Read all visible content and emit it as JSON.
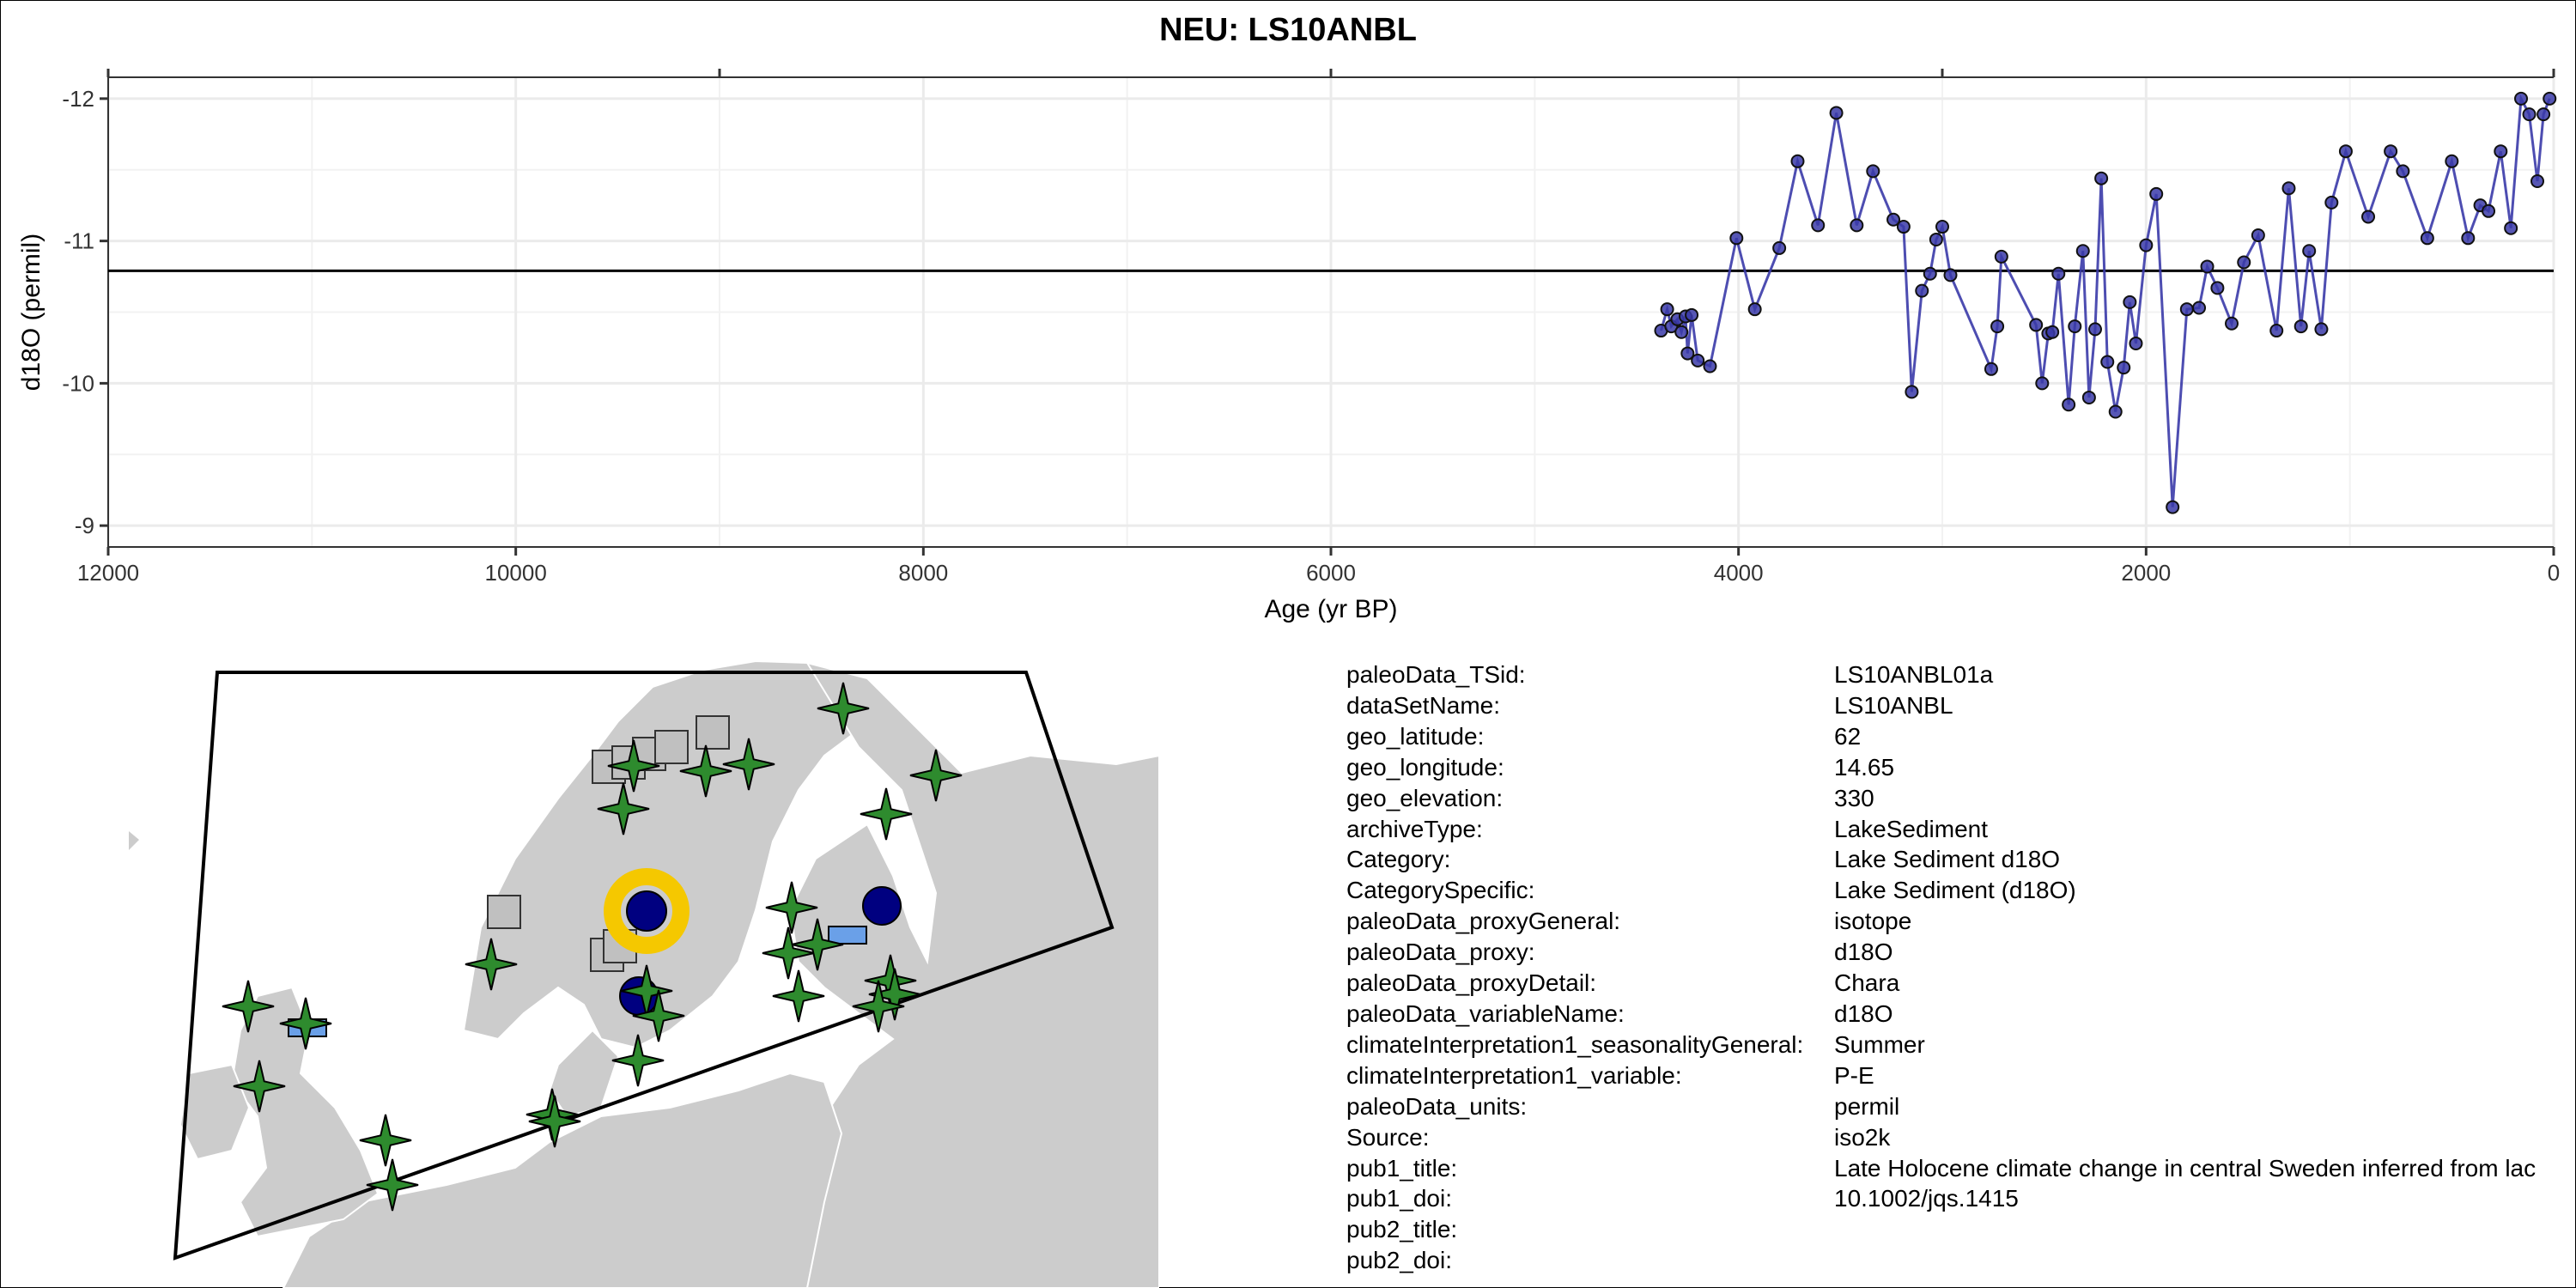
{
  "title": "NEU: LS10ANBL",
  "chart_data": {
    "type": "line",
    "title": "NEU: LS10ANBL",
    "xlabel": "Age (yr BP)",
    "ylabel": "d18O (permil)",
    "xlim": [
      12000,
      0
    ],
    "ylim": [
      -12.15,
      -8.85
    ],
    "x_reversed": true,
    "y_reversed": true,
    "xticks": [
      12000,
      10000,
      8000,
      6000,
      4000,
      2000,
      0
    ],
    "yticks": [
      -12,
      -11,
      -10,
      -9
    ],
    "grid": true,
    "reference_line": -10.79,
    "series": [
      {
        "color": "#3a3aa8",
        "x": [
          4380,
          4350,
          4330,
          4300,
          4280,
          4260,
          4250,
          4230,
          4200,
          4140,
          4010,
          3920,
          3800,
          3710,
          3610,
          3520,
          3420,
          3340,
          3240,
          3190,
          3150,
          3100,
          3060,
          3030,
          3000,
          2960,
          2760,
          2730,
          2710,
          2540,
          2510,
          2480,
          2460,
          2430,
          2380,
          2350,
          2310,
          2280,
          2250,
          2220,
          2190,
          2150,
          2110,
          2080,
          2050,
          2000,
          1950,
          1870,
          1800,
          1740,
          1700,
          1650,
          1580,
          1520,
          1450,
          1360,
          1300,
          1240,
          1200,
          1140,
          1090,
          1020,
          910,
          800,
          740,
          620,
          500,
          420,
          360,
          320,
          260,
          210,
          160,
          120,
          80,
          50,
          20
        ],
        "y": [
          -10.37,
          -10.52,
          -10.4,
          -10.45,
          -10.36,
          -10.47,
          -10.21,
          -10.48,
          -10.16,
          -10.12,
          -11.02,
          -10.52,
          -10.95,
          -11.56,
          -11.11,
          -11.9,
          -11.11,
          -11.49,
          -11.15,
          -11.1,
          -9.94,
          -10.65,
          -10.77,
          -11.01,
          -11.1,
          -10.76,
          -10.1,
          -10.4,
          -10.89,
          -10.41,
          -10.0,
          -10.35,
          -10.36,
          -10.77,
          -9.85,
          -10.4,
          -10.93,
          -9.9,
          -10.38,
          -11.44,
          -10.15,
          -9.8,
          -10.11,
          -10.57,
          -10.28,
          -10.97,
          -11.33,
          -9.13,
          -10.52,
          -10.53,
          -10.82,
          -10.67,
          -10.42,
          -10.85,
          -11.04,
          -10.37,
          -11.37,
          -10.4,
          -10.93,
          -10.38,
          -11.27,
          -11.63,
          -11.17,
          -11.63,
          -11.49,
          -11.02,
          -11.56,
          -11.02,
          -11.25,
          -11.21,
          -11.63,
          -11.09,
          -12.0,
          -11.89,
          -11.42,
          -11.89,
          -12.0
        ]
      }
    ]
  },
  "map": {
    "land_color": "#cccccc",
    "border_color": "#ffffff",
    "outline_color": "#000000",
    "legend_marks": [
      {
        "shape": "star",
        "color": "#2e8b2e"
      },
      {
        "shape": "square",
        "color": "#c0c0c0"
      },
      {
        "shape": "circle",
        "color": "#000080"
      },
      {
        "shape": "rect",
        "color": "#6aa0e8"
      },
      {
        "shape": "highlight-ring",
        "color": "#f5c800"
      }
    ]
  },
  "metadata": [
    {
      "key": "paleoData_TSid:",
      "value": "LS10ANBL01a"
    },
    {
      "key": "dataSetName:",
      "value": "LS10ANBL"
    },
    {
      "key": "geo_latitude:",
      "value": "62"
    },
    {
      "key": "geo_longitude:",
      "value": "14.65"
    },
    {
      "key": "geo_elevation:",
      "value": "330"
    },
    {
      "key": "archiveType:",
      "value": "LakeSediment"
    },
    {
      "key": "Category:",
      "value": "Lake Sediment d18O"
    },
    {
      "key": "CategorySpecific:",
      "value": "Lake Sediment (d18O)"
    },
    {
      "key": "paleoData_proxyGeneral:",
      "value": "isotope"
    },
    {
      "key": "paleoData_proxy:",
      "value": "d18O"
    },
    {
      "key": "paleoData_proxyDetail:",
      "value": "Chara"
    },
    {
      "key": "paleoData_variableName:",
      "value": "d18O"
    },
    {
      "key": "climateInterpretation1_seasonalityGeneral:",
      "value": "Summer"
    },
    {
      "key": "climateInterpretation1_variable:",
      "value": "P-E"
    },
    {
      "key": "paleoData_units:",
      "value": "permil"
    },
    {
      "key": "Source:",
      "value": "iso2k"
    },
    {
      "key": "pub1_title:",
      "value": "Late Holocene climate change in central Sweden inferred from lac"
    },
    {
      "key": "pub1_doi:",
      "value": "10.1002/jqs.1415"
    },
    {
      "key": "pub2_title:",
      "value": ""
    },
    {
      "key": "pub2_doi:",
      "value": ""
    }
  ]
}
